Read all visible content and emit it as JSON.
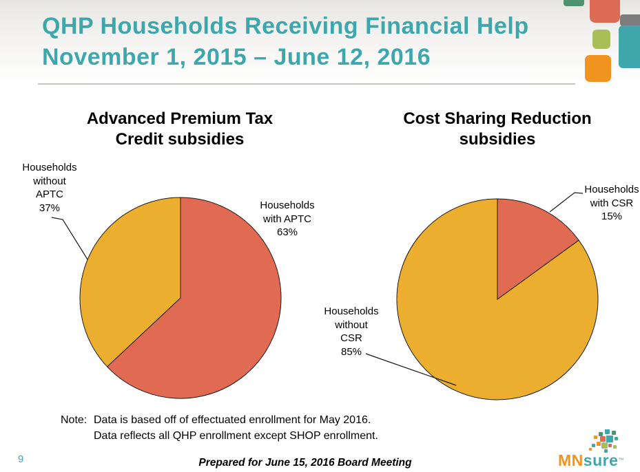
{
  "slide": {
    "title_line1": "QHP Households Receiving Financial Help",
    "title_line2": "November 1, 2015 – June 12, 2016",
    "page_number": "9",
    "footer_text": "Prepared for June 15, 2016 Board Meeting",
    "note_label": "Note:",
    "note_lines": [
      "Data is based off of effectuated enrollment for May 2016.",
      "Data reflects all QHP enrollment except SHOP enrollment."
    ]
  },
  "charts": [
    {
      "title_lines": [
        "Advanced Premium Tax",
        "Credit subsidies"
      ],
      "callouts": [
        {
          "lines": [
            "Households",
            "without",
            "APTC",
            "37%"
          ]
        },
        {
          "lines": [
            "Households",
            "with APTC",
            "63%"
          ]
        }
      ]
    },
    {
      "title_lines": [
        "Cost Sharing Reduction",
        "subsidies"
      ],
      "callouts": [
        {
          "lines": [
            "Households",
            "with CSR",
            "15%"
          ]
        },
        {
          "lines": [
            "Households",
            "without",
            "CSR",
            "85%"
          ]
        }
      ]
    }
  ],
  "chart_data": [
    {
      "type": "pie",
      "title": "Advanced Premium Tax Credit subsidies",
      "units": "percent",
      "start_angle": "12 o'clock",
      "direction": "clockwise",
      "slices": [
        {
          "label": "Households with APTC",
          "value": 63,
          "color": "#E06B52"
        },
        {
          "label": "Households without APTC",
          "value": 37,
          "color": "#EBAE2F"
        }
      ]
    },
    {
      "type": "pie",
      "title": "Cost Sharing Reduction subsidies",
      "units": "percent",
      "start_angle": "12 o'clock",
      "direction": "clockwise",
      "slices": [
        {
          "label": "Households with CSR",
          "value": 15,
          "color": "#E06B52"
        },
        {
          "label": "Households without CSR",
          "value": 85,
          "color": "#EBAE2F"
        }
      ]
    }
  ],
  "logo": {
    "mn": "MN",
    "sure": "sure",
    "tm": "™"
  },
  "colors": {
    "teal": "#3EA7AC",
    "orange": "#F0931F",
    "red": "#DC6B55",
    "gold": "#EBAE2F",
    "green_dark": "#4D9271",
    "green_light": "#A9BE56",
    "gray": "#7D7D7D"
  }
}
